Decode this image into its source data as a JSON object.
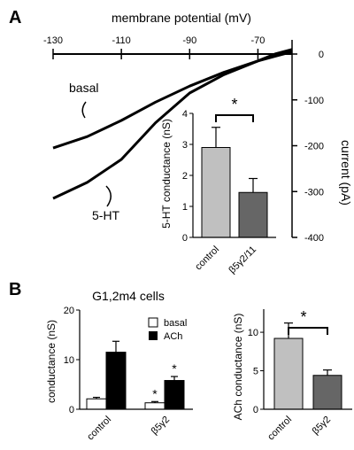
{
  "panel_a": {
    "letter": "A",
    "iv_top_label": "membrane potential (mV)",
    "iv_right_label": "current (pA)",
    "x_ticks": [
      "-130",
      "-110",
      "-90",
      "-70"
    ],
    "y_ticks": [
      "0",
      "-100",
      "-200",
      "-300",
      "-400"
    ],
    "trace_labels": [
      "basal",
      "5-HT"
    ],
    "sig": "*",
    "inset_ylabel": "5-HT conductance (nS)",
    "inset_ticks": [
      "0",
      "1",
      "2",
      "3",
      "4"
    ],
    "inset_cats": [
      "control",
      "β5γ2/11"
    ]
  },
  "panel_b": {
    "letter": "B",
    "title": "G1,2m4 cells",
    "left_ylabel": "conductance (nS)",
    "left_ticks": [
      "0",
      "10",
      "20"
    ],
    "left_cats": [
      "control",
      "β5γ2"
    ],
    "legend": [
      "basal",
      "ACh"
    ],
    "stars": [
      "*",
      "*"
    ],
    "right_ylabel": "ACh conductance (nS)",
    "right_ticks": [
      "0",
      "5",
      "10"
    ],
    "right_cats": [
      "control",
      "β5γ2"
    ],
    "sig": "*"
  },
  "chart_data": [
    {
      "type": "line",
      "panel": "A",
      "xlabel": "membrane potential (mV)",
      "ylabel": "current (pA)",
      "xlim": [
        -130,
        -60
      ],
      "ylim": [
        -400,
        0
      ],
      "series": [
        {
          "name": "basal",
          "x": [
            -130,
            -120,
            -110,
            -100,
            -90,
            -80,
            -70,
            -65,
            -60
          ],
          "y": [
            -205,
            -180,
            -145,
            -105,
            -70,
            -40,
            -15,
            -5,
            5
          ]
        },
        {
          "name": "5-HT",
          "x": [
            -130,
            -120,
            -110,
            -100,
            -90,
            -80,
            -70,
            -65,
            -60
          ],
          "y": [
            -315,
            -280,
            -230,
            -150,
            -85,
            -45,
            -15,
            0,
            10
          ]
        }
      ]
    },
    {
      "type": "bar",
      "panel": "A inset",
      "ylabel": "5-HT conductance (nS)",
      "ylim": [
        0,
        4
      ],
      "categories": [
        "control",
        "β5γ2/11"
      ],
      "values": [
        2.9,
        1.45
      ],
      "errors": [
        0.65,
        0.45
      ],
      "colors": [
        "#c0c0c0",
        "#666666"
      ]
    },
    {
      "type": "bar",
      "panel": "B left",
      "title": "G1,2m4 cells",
      "ylabel": "conductance (nS)",
      "ylim": [
        0,
        20
      ],
      "categories": [
        "control",
        "β5γ2"
      ],
      "series": [
        {
          "name": "basal",
          "values": [
            2.1,
            1.3
          ],
          "errors": [
            0.3,
            0.25
          ],
          "color": "#ffffff"
        },
        {
          "name": "ACh",
          "values": [
            11.5,
            5.8
          ],
          "errors": [
            2.2,
            0.8
          ],
          "color": "#000000"
        }
      ]
    },
    {
      "type": "bar",
      "panel": "B right",
      "ylabel": "ACh conductance (nS)",
      "ylim": [
        0,
        13
      ],
      "categories": [
        "control",
        "β5γ2"
      ],
      "values": [
        9.2,
        4.4
      ],
      "errors": [
        2.0,
        0.7
      ],
      "colors": [
        "#c0c0c0",
        "#666666"
      ]
    }
  ]
}
